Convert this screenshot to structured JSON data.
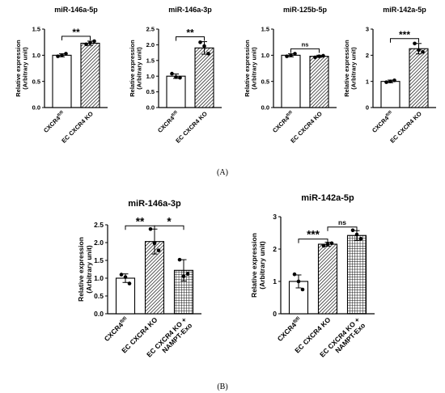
{
  "panel_labels": [
    "(A)",
    "(B)"
  ],
  "colors": {
    "ink": "#000000",
    "bar_fill": "#ffffff"
  },
  "chart_data": [
    {
      "type": "bar",
      "title": "miR-146a-5p",
      "ylabel": [
        "Relative expression",
        "(Arbitrary unit)"
      ],
      "ylim": [
        0,
        1.5
      ],
      "yticks": [
        "0.0",
        "0.5",
        "1.0",
        "1.5"
      ],
      "categories": [
        "CXCR4fl/fl",
        "EC CXCR4 KO"
      ],
      "values": [
        1.0,
        1.23
      ],
      "errors": [
        0.03,
        0.04
      ],
      "points": [
        [
          0.98,
          1.03,
          1.0
        ],
        [
          1.21,
          1.27,
          1.24
        ]
      ],
      "patterns": [
        "plain",
        "diag"
      ],
      "significance": [
        {
          "pair": [
            0,
            1
          ],
          "label": "**"
        }
      ],
      "grid": false
    },
    {
      "type": "bar",
      "title": "miR-146a-3p",
      "ylabel": [
        "Relative expression",
        "(Arbitrary unit)"
      ],
      "ylim": [
        0,
        2.5
      ],
      "yticks": [
        "0.0",
        "0.5",
        "1.0",
        "1.5",
        "2.0",
        "2.5"
      ],
      "categories": [
        "CXCR4fl/fl",
        "EC CXCR4 KO"
      ],
      "values": [
        1.0,
        1.9
      ],
      "errors": [
        0.07,
        0.2
      ],
      "points": [
        [
          1.08,
          0.95,
          0.97
        ],
        [
          2.08,
          1.72,
          1.96
        ]
      ],
      "patterns": [
        "plain",
        "diag"
      ],
      "significance": [
        {
          "pair": [
            0,
            1
          ],
          "label": "**"
        }
      ],
      "grid": false
    },
    {
      "type": "bar",
      "title": "miR-125b-5p",
      "ylabel": [
        "Relative expression",
        "(Arbitrary unit)"
      ],
      "ylim": [
        0,
        1.5
      ],
      "yticks": [
        "0.0",
        "0.5",
        "1.0",
        "1.5"
      ],
      "categories": [
        "CXCR4fl/fl",
        "EC CXCR4 KO"
      ],
      "values": [
        1.0,
        0.98
      ],
      "errors": [
        0.03,
        0.02
      ],
      "points": [
        [
          0.98,
          1.03,
          1.0
        ],
        [
          0.96,
          0.99,
          0.98
        ]
      ],
      "patterns": [
        "plain",
        "diag"
      ],
      "significance": [
        {
          "pair": [
            0,
            1
          ],
          "label": "ns"
        }
      ],
      "grid": false
    },
    {
      "type": "bar",
      "title": "miR-142a-5p",
      "ylabel": [
        "Relative expression",
        "(Arbitrary unit)"
      ],
      "ylim": [
        0,
        3
      ],
      "yticks": [
        "0",
        "1",
        "2",
        "3"
      ],
      "categories": [
        "CXCR4fl/fl",
        "EC CXCR4 KO"
      ],
      "values": [
        1.0,
        2.25
      ],
      "errors": [
        0.05,
        0.2
      ],
      "points": [
        [
          0.97,
          1.04,
          1.0
        ],
        [
          2.45,
          2.13,
          2.2
        ]
      ],
      "patterns": [
        "plain",
        "diag"
      ],
      "significance": [
        {
          "pair": [
            0,
            1
          ],
          "label": "***"
        }
      ],
      "grid": false
    },
    {
      "type": "bar",
      "title": "miR-146a-3p",
      "ylabel": [
        "Relative expression",
        "(Arbitrary unit)"
      ],
      "ylim": [
        0,
        2.5
      ],
      "yticks": [
        "0.0",
        "0.5",
        "1.0",
        "1.5",
        "2.0",
        "2.5"
      ],
      "categories": [
        "CXCR4fl/fl",
        "EC CXCR4 KO",
        "EC CXCR4 KO + NAMPT-Exo"
      ],
      "values": [
        1.0,
        2.03,
        1.22
      ],
      "errors": [
        0.12,
        0.35,
        0.3
      ],
      "points": [
        [
          1.1,
          0.85,
          1.03
        ],
        [
          2.38,
          1.78,
          1.98
        ],
        [
          1.52,
          1.12,
          1.05
        ]
      ],
      "patterns": [
        "plain",
        "diag",
        "grid"
      ],
      "significance": [
        {
          "pair": [
            0,
            1
          ],
          "label": "**"
        },
        {
          "pair": [
            1,
            2
          ],
          "label": "*"
        }
      ],
      "grid": false
    },
    {
      "type": "bar",
      "title": "miR-142a-5p",
      "ylabel": [
        "Relative expression",
        "(Arbitrary unit)"
      ],
      "ylim": [
        0,
        3
      ],
      "yticks": [
        "0",
        "1",
        "2",
        "3"
      ],
      "categories": [
        "CXCR4fl/fl",
        "EC CXCR4 KO",
        "EC CXCR4 KO + NAMPT-Exo"
      ],
      "values": [
        1.0,
        2.15,
        2.42
      ],
      "errors": [
        0.2,
        0.06,
        0.15
      ],
      "points": [
        [
          1.22,
          0.75,
          1.0
        ],
        [
          2.1,
          2.18,
          2.15
        ],
        [
          2.58,
          2.32,
          2.45
        ]
      ],
      "patterns": [
        "plain",
        "diag",
        "grid"
      ],
      "significance": [
        {
          "pair": [
            0,
            1
          ],
          "label": "***"
        },
        {
          "pair": [
            1,
            2
          ],
          "label": "ns"
        }
      ],
      "grid": false
    }
  ]
}
